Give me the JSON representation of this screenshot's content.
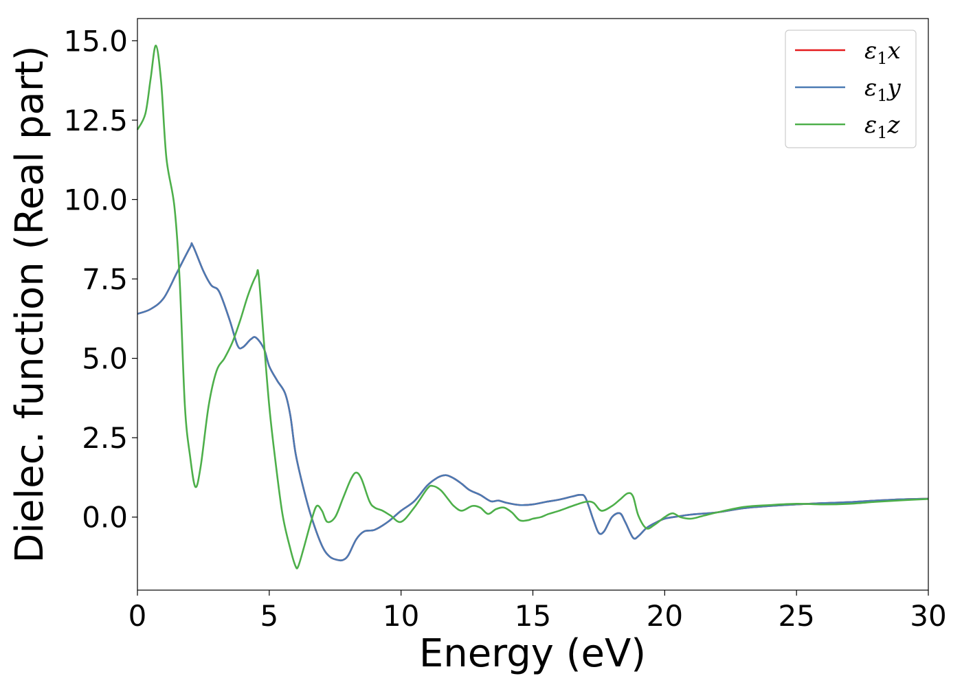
{
  "chart_data": {
    "type": "line",
    "title": "",
    "xlabel": "Energy (eV)",
    "ylabel": "Dielec. function (Real part)",
    "xlim": [
      0,
      30
    ],
    "ylim": [
      -2.3,
      15.7
    ],
    "xticks": [
      0,
      5,
      10,
      15,
      20,
      25,
      30
    ],
    "xtick_labels": [
      "0",
      "5",
      "10",
      "15",
      "20",
      "25",
      "30"
    ],
    "yticks": [
      0,
      2.5,
      5,
      7.5,
      10,
      12.5,
      15
    ],
    "ytick_labels": [
      "0.0",
      "2.5",
      "5.0",
      "7.5",
      "10.0",
      "12.5",
      "15.0"
    ],
    "grid": false,
    "legend_position": "top-right",
    "series": [
      {
        "name": "ε1x",
        "legend_symbol": "ε",
        "legend_sub": "1",
        "legend_var": "x",
        "color": "#e41a1c",
        "x": [
          0,
          0.5,
          1.0,
          1.5,
          2.0,
          2.1,
          2.5,
          2.8,
          3.1,
          3.5,
          3.8,
          4.0,
          4.3,
          4.5,
          4.8,
          5.0,
          5.3,
          5.6,
          5.8,
          6.0,
          6.3,
          6.6,
          7.0,
          7.3,
          7.6,
          7.8,
          8.0,
          8.3,
          8.6,
          9.0,
          9.5,
          10.0,
          10.5,
          11.0,
          11.4,
          11.7,
          12.0,
          12.3,
          12.6,
          13.0,
          13.4,
          13.7,
          14.0,
          14.5,
          15.0,
          15.5,
          16.0,
          16.5,
          16.8,
          17.0,
          17.3,
          17.5,
          17.7,
          18.0,
          18.3,
          18.5,
          18.8,
          19.0,
          19.3,
          19.6,
          20.0,
          20.5,
          21.0,
          22.0,
          23.0,
          24.0,
          25.0,
          26.0,
          27.0,
          28.0,
          29.0,
          30.0
        ],
        "values": [
          6.4,
          6.55,
          6.9,
          7.7,
          8.5,
          8.55,
          7.75,
          7.3,
          7.1,
          6.2,
          5.4,
          5.35,
          5.6,
          5.65,
          5.3,
          4.75,
          4.3,
          3.9,
          3.2,
          2.0,
          0.9,
          0.0,
          -0.9,
          -1.25,
          -1.35,
          -1.35,
          -1.2,
          -0.7,
          -0.45,
          -0.4,
          -0.15,
          0.2,
          0.5,
          1.0,
          1.25,
          1.32,
          1.22,
          1.05,
          0.85,
          0.7,
          0.5,
          0.52,
          0.45,
          0.38,
          0.4,
          0.48,
          0.55,
          0.65,
          0.7,
          0.6,
          -0.1,
          -0.5,
          -0.45,
          0.0,
          0.12,
          -0.15,
          -0.65,
          -0.6,
          -0.35,
          -0.2,
          -0.05,
          0.02,
          0.08,
          0.15,
          0.28,
          0.35,
          0.4,
          0.44,
          0.47,
          0.52,
          0.56,
          0.58
        ]
      },
      {
        "name": "ε1y",
        "legend_symbol": "ε",
        "legend_sub": "1",
        "legend_var": "y",
        "color": "#4a7ab3",
        "x": [
          0,
          0.5,
          1.0,
          1.5,
          2.0,
          2.1,
          2.5,
          2.8,
          3.1,
          3.5,
          3.8,
          4.0,
          4.3,
          4.5,
          4.8,
          5.0,
          5.3,
          5.6,
          5.8,
          6.0,
          6.3,
          6.6,
          7.0,
          7.3,
          7.6,
          7.8,
          8.0,
          8.3,
          8.6,
          9.0,
          9.5,
          10.0,
          10.5,
          11.0,
          11.4,
          11.7,
          12.0,
          12.3,
          12.6,
          13.0,
          13.4,
          13.7,
          14.0,
          14.5,
          15.0,
          15.5,
          16.0,
          16.5,
          16.8,
          17.0,
          17.3,
          17.5,
          17.7,
          18.0,
          18.3,
          18.5,
          18.8,
          19.0,
          19.3,
          19.6,
          20.0,
          20.5,
          21.0,
          22.0,
          23.0,
          24.0,
          25.0,
          26.0,
          27.0,
          28.0,
          29.0,
          30.0
        ],
        "values": [
          6.4,
          6.55,
          6.9,
          7.7,
          8.5,
          8.55,
          7.75,
          7.3,
          7.1,
          6.2,
          5.4,
          5.35,
          5.6,
          5.65,
          5.3,
          4.75,
          4.3,
          3.9,
          3.2,
          2.0,
          0.9,
          0.0,
          -0.9,
          -1.25,
          -1.35,
          -1.35,
          -1.2,
          -0.7,
          -0.45,
          -0.4,
          -0.15,
          0.2,
          0.5,
          1.0,
          1.25,
          1.32,
          1.22,
          1.05,
          0.85,
          0.7,
          0.5,
          0.52,
          0.45,
          0.38,
          0.4,
          0.48,
          0.55,
          0.65,
          0.7,
          0.6,
          -0.1,
          -0.5,
          -0.45,
          0.0,
          0.12,
          -0.15,
          -0.65,
          -0.6,
          -0.35,
          -0.2,
          -0.05,
          0.02,
          0.08,
          0.15,
          0.28,
          0.35,
          0.4,
          0.44,
          0.47,
          0.52,
          0.56,
          0.58
        ]
      },
      {
        "name": "ε1z",
        "legend_symbol": "ε",
        "legend_sub": "1",
        "legend_var": "z",
        "color": "#4daf4a",
        "x": [
          0,
          0.3,
          0.5,
          0.7,
          0.9,
          1.1,
          1.4,
          1.6,
          1.8,
          2.0,
          2.2,
          2.4,
          2.7,
          3.0,
          3.3,
          3.6,
          3.9,
          4.2,
          4.5,
          4.6,
          4.8,
          5.0,
          5.2,
          5.5,
          5.8,
          6.0,
          6.1,
          6.3,
          6.6,
          6.8,
          7.0,
          7.2,
          7.5,
          7.8,
          8.1,
          8.3,
          8.5,
          8.8,
          9.0,
          9.3,
          9.6,
          10.0,
          10.5,
          11.0,
          11.2,
          11.5,
          11.8,
          12.0,
          12.3,
          12.7,
          13.0,
          13.3,
          13.6,
          13.9,
          14.2,
          14.5,
          14.8,
          15.0,
          15.3,
          15.6,
          16.0,
          16.5,
          17.0,
          17.3,
          17.6,
          18.0,
          18.3,
          18.6,
          18.8,
          19.0,
          19.3,
          19.6,
          20.0,
          20.3,
          20.6,
          21.0,
          21.5,
          22.0,
          23.0,
          24.0,
          25.0,
          26.0,
          27.0,
          28.0,
          29.0,
          30.0
        ],
        "values": [
          12.2,
          12.7,
          13.8,
          14.85,
          13.7,
          11.3,
          9.8,
          7.5,
          3.5,
          1.9,
          0.95,
          1.6,
          3.5,
          4.6,
          5.0,
          5.5,
          6.2,
          7.0,
          7.6,
          7.6,
          5.5,
          3.5,
          2.0,
          0.1,
          -1.0,
          -1.55,
          -1.55,
          -1.0,
          -0.1,
          0.35,
          0.2,
          -0.15,
          0.0,
          0.6,
          1.2,
          1.4,
          1.2,
          0.5,
          0.3,
          0.2,
          0.05,
          -0.15,
          0.3,
          0.9,
          0.98,
          0.85,
          0.55,
          0.35,
          0.2,
          0.35,
          0.3,
          0.1,
          0.25,
          0.3,
          0.15,
          -0.1,
          -0.1,
          -0.05,
          0.0,
          0.1,
          0.2,
          0.35,
          0.48,
          0.45,
          0.2,
          0.35,
          0.55,
          0.75,
          0.65,
          0.05,
          -0.35,
          -0.25,
          0.0,
          0.12,
          0.0,
          -0.05,
          0.05,
          0.15,
          0.32,
          0.38,
          0.42,
          0.4,
          0.42,
          0.48,
          0.53,
          0.57
        ]
      }
    ]
  }
}
